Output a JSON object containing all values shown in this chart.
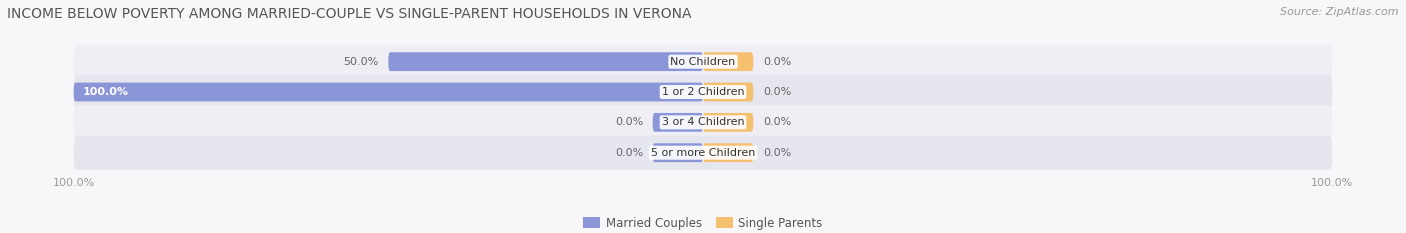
{
  "title": "INCOME BELOW POVERTY AMONG MARRIED-COUPLE VS SINGLE-PARENT HOUSEHOLDS IN VERONA",
  "source": "Source: ZipAtlas.com",
  "categories": [
    "No Children",
    "1 or 2 Children",
    "3 or 4 Children",
    "5 or more Children"
  ],
  "married_values": [
    50.0,
    100.0,
    0.0,
    0.0
  ],
  "single_values": [
    0.0,
    0.0,
    0.0,
    0.0
  ],
  "married_color": "#8B96D9",
  "single_color": "#F5C070",
  "row_bg_light": "#EEEEF4",
  "row_bg_dark": "#E6E6EF",
  "fig_bg": "#F7F7FA",
  "title_color": "#555555",
  "source_color": "#999999",
  "label_color": "#666666",
  "legend_married": "Married Couples",
  "legend_single": "Single Parents",
  "x_left_label": "100.0%",
  "x_right_label": "100.0%",
  "title_fontsize": 10,
  "source_fontsize": 8,
  "bar_label_fontsize": 8,
  "cat_label_fontsize": 8,
  "axis_tick_fontsize": 8,
  "legend_fontsize": 8.5,
  "stub_size": 8.0
}
